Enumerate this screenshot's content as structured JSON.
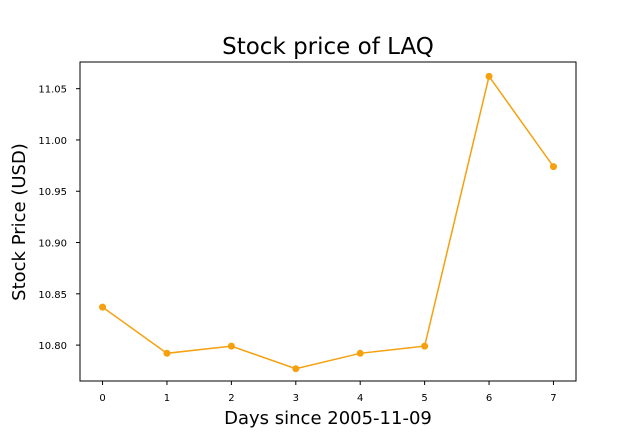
{
  "chart_data": {
    "type": "line",
    "title": "Stock price of LAQ",
    "xlabel": "Days since 2005-11-09",
    "ylabel": "Stock Price (USD)",
    "x": [
      0,
      1,
      2,
      3,
      4,
      5,
      6,
      7
    ],
    "x_tick_labels": [
      "0",
      "1",
      "2",
      "3",
      "4",
      "5",
      "6",
      "7"
    ],
    "y_ticks": [
      10.8,
      10.85,
      10.9,
      10.95,
      11.0,
      11.05
    ],
    "y_tick_labels": [
      "10.80",
      "10.85",
      "10.90",
      "10.95",
      "11.00",
      "11.05"
    ],
    "xlim": [
      -0.35,
      7.35
    ],
    "ylim": [
      10.765,
      11.076
    ],
    "series": [
      {
        "values": [
          10.837,
          10.792,
          10.799,
          10.777,
          10.792,
          10.799,
          11.062,
          10.974
        ]
      }
    ],
    "colors": {
      "line": "#f5a00f",
      "marker": "#f5a00f",
      "axis": "#000000",
      "background": "#ffffff"
    },
    "grid": false,
    "legend": false
  }
}
